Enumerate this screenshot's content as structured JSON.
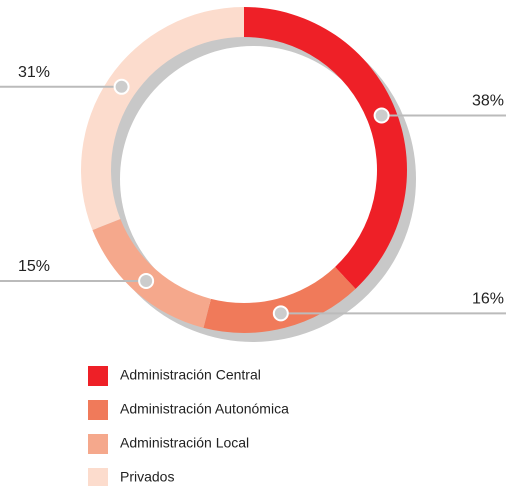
{
  "chart_data": {
    "type": "pie",
    "donut": true,
    "categories": [
      "Administración Central",
      "Administración Autonómica",
      "Administración Local",
      "Privados"
    ],
    "values": [
      38,
      16,
      15,
      31
    ],
    "value_labels": [
      "38%",
      "16%",
      "15%",
      "31%"
    ],
    "colors": [
      "#ee2027",
      "#f07a5a",
      "#f5a88c",
      "#fcdccd"
    ]
  }
}
